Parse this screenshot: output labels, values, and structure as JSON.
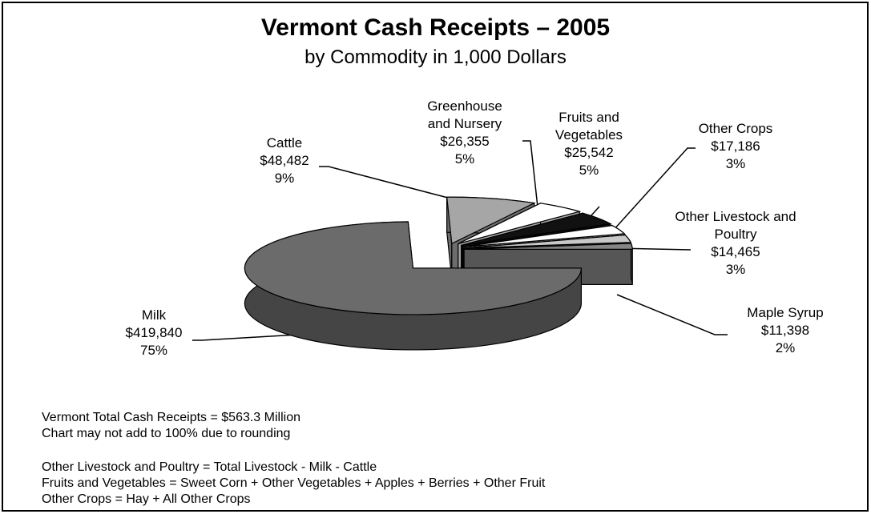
{
  "chart_data": {
    "type": "pie",
    "title": "Vermont Cash Receipts – 2005",
    "subtitle": "by Commodity in 1,000 Dollars",
    "categories": [
      "Milk",
      "Cattle",
      "Greenhouse and Nursery",
      "Fruits and Vegetables",
      "Other Crops",
      "Other Livestock and Poultry",
      "Maple Syrup"
    ],
    "values": [
      419840,
      48482,
      26355,
      25542,
      17186,
      14465,
      11398
    ],
    "value_labels": [
      "$419,840",
      "$48,482",
      "$26,355",
      "$25,542",
      "$17,186",
      "$14,465",
      "$11,398"
    ],
    "percents": [
      75,
      9,
      5,
      5,
      3,
      3,
      2
    ],
    "percent_labels": [
      "75%",
      "9%",
      "5%",
      "5%",
      "3%",
      "3%",
      "2%"
    ],
    "colors": [
      "#6b6b6b",
      "#a6a6a6",
      "#ffffff",
      "#111111",
      "#ffffff",
      "#c8c8c8",
      "#858585"
    ],
    "notes": [
      "Vermont Total Cash Receipts = $563.3 Million",
      "Chart may not add to 100% due to rounding",
      "Other Livestock and Poultry = Total Livestock - Milk - Cattle",
      "Fruits and Vegetables = Sweet Corn + Other Vegetables + Apples + Berries + Other Fruit",
      "Other Crops = Hay + All Other Crops"
    ]
  }
}
